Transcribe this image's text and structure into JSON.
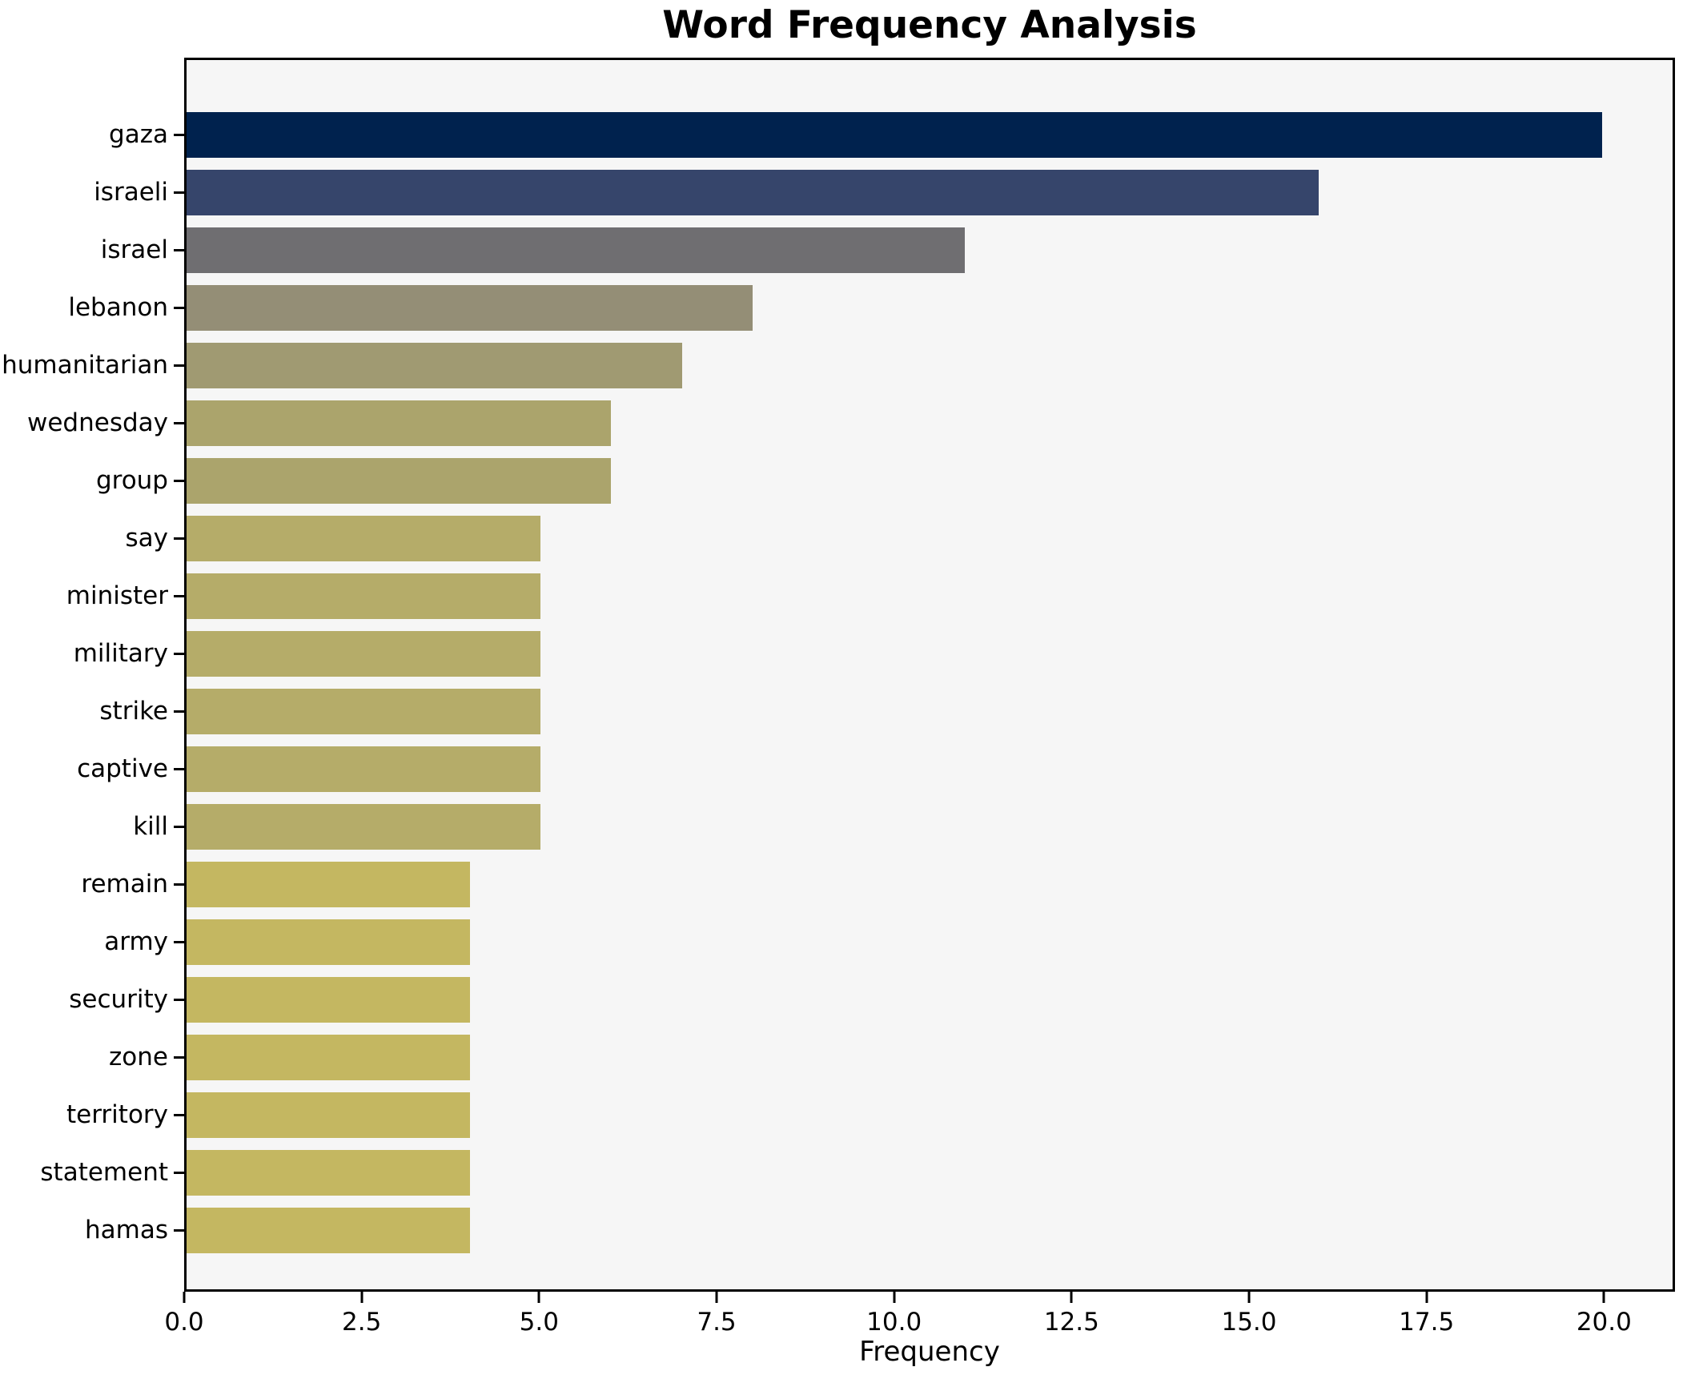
{
  "chart_data": {
    "type": "bar",
    "orientation": "horizontal",
    "title": "Word Frequency Analysis",
    "xlabel": "Frequency",
    "ylabel": "",
    "categories": [
      "gaza",
      "israeli",
      "israel",
      "lebanon",
      "humanitarian",
      "wednesday",
      "group",
      "say",
      "minister",
      "military",
      "strike",
      "captive",
      "kill",
      "remain",
      "army",
      "security",
      "zone",
      "territory",
      "statement",
      "hamas"
    ],
    "values": [
      20,
      16,
      11,
      8,
      7,
      6,
      6,
      5,
      5,
      5,
      5,
      5,
      5,
      4,
      4,
      4,
      4,
      4,
      4,
      4
    ],
    "bar_colors": [
      "#00224e",
      "#36456b",
      "#6f6e71",
      "#948e76",
      "#a09a72",
      "#aba46c",
      "#aba46c",
      "#b5ac69",
      "#b5ac69",
      "#b5ac69",
      "#b5ac69",
      "#b5ac69",
      "#b5ac69",
      "#c4b761",
      "#c4b761",
      "#c4b761",
      "#c4b761",
      "#c4b761",
      "#c4b761",
      "#c4b761"
    ],
    "xlim": [
      0,
      21
    ],
    "xticks": [
      0,
      2.5,
      5,
      7.5,
      10,
      12.5,
      15,
      17.5,
      20
    ],
    "xtick_labels": [
      "0.0",
      "2.5",
      "5.0",
      "7.5",
      "10.0",
      "12.5",
      "15.0",
      "17.5",
      "20.0"
    ],
    "grid": false,
    "legend": "none",
    "plot_background": "#f6f6f6",
    "figure_background": "#ffffff",
    "colormap": "cividis"
  }
}
